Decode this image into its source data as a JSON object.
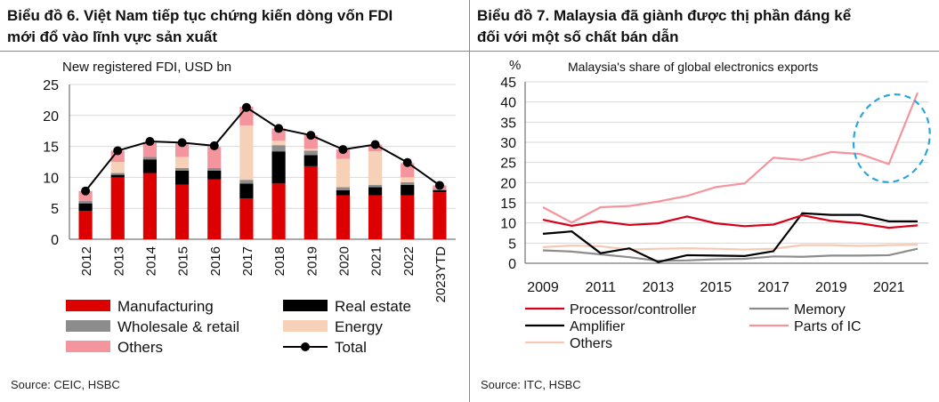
{
  "left": {
    "title_line1": "Biểu đồ 6. Việt Nam tiếp tục chứng kiến dòng vốn FDI",
    "title_line2": "mới đổ vào lĩnh vực sản xuất",
    "source": "Source: CEIC, HSBC"
  },
  "right": {
    "title_line1": "Biểu đồ 7. Malaysia đã giành được thị phần đáng kể",
    "title_line2": "đối với một số chất bán dẫn",
    "source": "Source: ITC, HSBC"
  },
  "chart_data": [
    {
      "type": "bar",
      "stacked": true,
      "title": "New registered FDI, USD bn",
      "ylim": [
        0,
        25
      ],
      "yticks": [
        0,
        5,
        10,
        15,
        20,
        25
      ],
      "categories": [
        "2012",
        "2013",
        "2014",
        "2015",
        "2016",
        "2017",
        "2018",
        "2019",
        "2020",
        "2021",
        "2022",
        "2023YTD"
      ],
      "series": [
        {
          "name": "Manufacturing",
          "color": "#dd0000",
          "values": [
            4.6,
            10.0,
            10.7,
            8.8,
            9.7,
            6.6,
            9.0,
            11.8,
            7.1,
            7.1,
            7.1,
            7.6
          ]
        },
        {
          "name": "Real estate",
          "color": "#000000",
          "values": [
            1.2,
            0.4,
            2.2,
            2.3,
            1.4,
            2.4,
            5.2,
            1.8,
            0.8,
            1.3,
            1.7,
            0.3
          ]
        },
        {
          "name": "Wholesale & retail",
          "color": "#8c8c8c",
          "values": [
            0.4,
            0.3,
            0.4,
            0.4,
            0.4,
            0.6,
            1.0,
            0.7,
            0.5,
            0.4,
            0.4,
            0.2
          ]
        },
        {
          "name": "Energy",
          "color": "#f7d0b8",
          "values": [
            0.0,
            1.8,
            0.0,
            1.8,
            0.0,
            8.8,
            0.7,
            0.3,
            4.6,
            5.4,
            0.8,
            0.0
          ]
        },
        {
          "name": "Others",
          "color": "#f4949c",
          "values": [
            1.6,
            1.8,
            2.3,
            2.2,
            3.4,
            3.0,
            2.0,
            2.2,
            1.5,
            1.1,
            2.3,
            0.6
          ]
        }
      ],
      "line": {
        "name": "Total",
        "color": "#000000",
        "values": [
          7.8,
          14.3,
          15.8,
          15.6,
          15.1,
          21.3,
          17.9,
          16.8,
          14.5,
          15.3,
          12.4,
          8.7
        ]
      },
      "legend": [
        "Manufacturing",
        "Real estate",
        "Wholesale & retail",
        "Energy",
        "Others",
        "Total"
      ]
    },
    {
      "type": "line",
      "title": "Malaysia's share of global electronics exports",
      "ylabel": "%",
      "ylim": [
        0,
        45
      ],
      "yticks": [
        0,
        5,
        10,
        15,
        20,
        25,
        30,
        35,
        40,
        45
      ],
      "x": [
        2009,
        2010,
        2011,
        2012,
        2013,
        2014,
        2015,
        2016,
        2017,
        2018,
        2019,
        2020,
        2021,
        2022
      ],
      "xticks": [
        "2009",
        "2011",
        "2013",
        "2015",
        "2017",
        "2019",
        "2021"
      ],
      "series": [
        {
          "name": "Processor/controller",
          "color": "#d7001a",
          "values": [
            10.8,
            9.3,
            10.4,
            9.5,
            9.9,
            11.6,
            9.9,
            9.2,
            9.6,
            11.9,
            10.5,
            9.9,
            8.8,
            9.4
          ]
        },
        {
          "name": "Memory",
          "color": "#8c8c8c",
          "values": [
            3.2,
            2.9,
            2.2,
            1.5,
            0.6,
            0.7,
            1.0,
            1.1,
            1.7,
            1.6,
            1.9,
            1.9,
            2.0,
            3.6
          ]
        },
        {
          "name": "Amplifier",
          "color": "#000000",
          "values": [
            7.3,
            7.9,
            2.5,
            3.7,
            0.3,
            2.0,
            1.9,
            1.8,
            3.0,
            12.4,
            12.0,
            12.0,
            10.4,
            10.4
          ]
        },
        {
          "name": "Parts of IC",
          "color": "#f4949c",
          "values": [
            13.9,
            10.1,
            13.9,
            14.2,
            15.3,
            16.7,
            18.9,
            19.8,
            26.2,
            25.6,
            27.6,
            27.1,
            24.6,
            42.3
          ]
        },
        {
          "name": "Others",
          "color": "#f7c8b4",
          "values": [
            4.0,
            4.4,
            4.2,
            3.4,
            3.6,
            3.7,
            3.6,
            3.4,
            3.6,
            4.5,
            4.5,
            4.3,
            4.5,
            4.6
          ]
        }
      ],
      "annotation": "dashed ellipse highlighting 2020-2022 Parts of IC surge",
      "legend": [
        "Processor/controller",
        "Memory",
        "Amplifier",
        "Parts of IC",
        "Others"
      ]
    }
  ]
}
